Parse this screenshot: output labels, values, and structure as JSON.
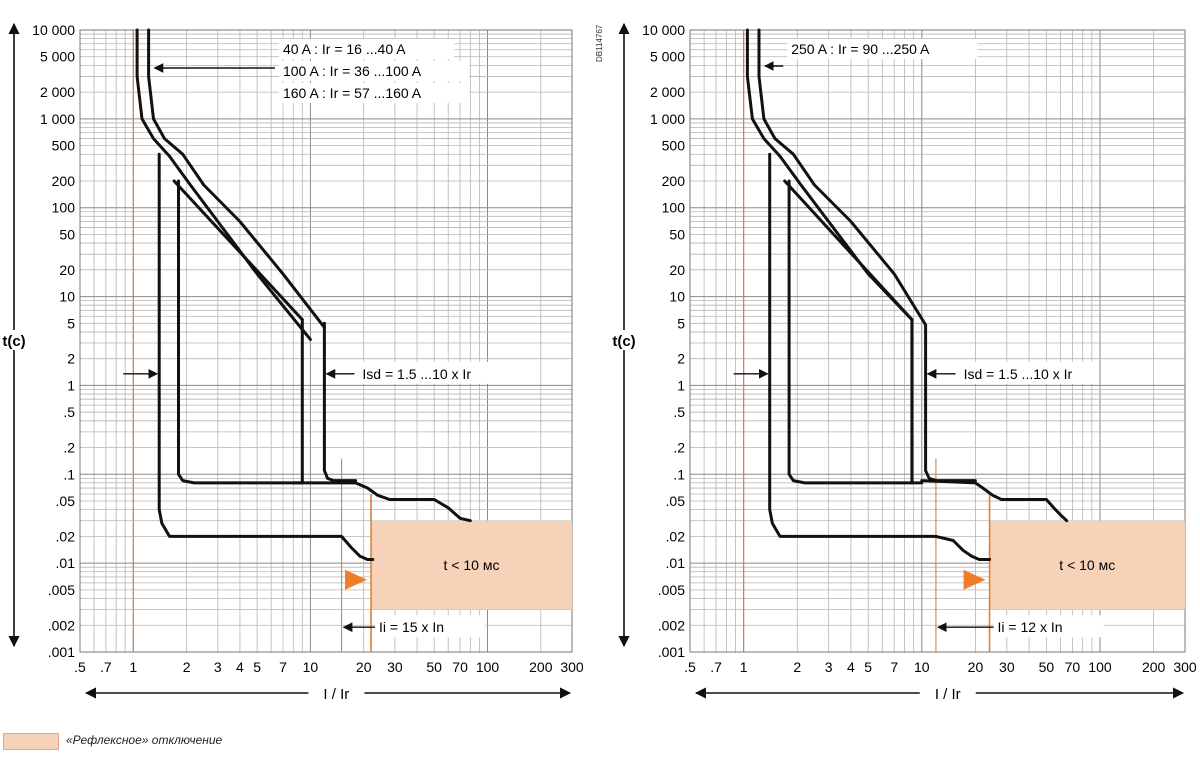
{
  "legend": {
    "reflex_label": "«Рефлексное» отключение",
    "reflex_color": "#f6d2b9"
  },
  "doc_code": "DB114767",
  "chart_data": [
    {
      "type": "line",
      "x_scale": "log",
      "y_scale": "log",
      "xlabel": "I / Ir",
      "ylabel": "t(c)",
      "xlim": [
        0.5,
        300
      ],
      "ylim": [
        0.001,
        10000
      ],
      "x_ticks": [
        0.5,
        0.7,
        1,
        2,
        3,
        4,
        5,
        7,
        10,
        20,
        30,
        50,
        70,
        100,
        200,
        300
      ],
      "x_tick_labels": [
        ".5",
        ".7",
        "1",
        "2",
        "3",
        "4",
        "5",
        "7",
        "10",
        "20",
        "30",
        "50",
        "70",
        "100",
        "200",
        "300"
      ],
      "y_ticks": [
        10000,
        5000,
        2000,
        1000,
        500,
        200,
        100,
        50,
        20,
        10,
        5,
        2,
        1,
        0.5,
        0.2,
        0.1,
        0.05,
        0.02,
        0.01,
        0.005,
        0.002,
        0.001
      ],
      "y_tick_labels": [
        "10 000",
        "5 000",
        "2 000",
        "1 000",
        "500",
        "200",
        "100",
        "50",
        "20",
        "10",
        "5",
        "2",
        "1",
        ".5",
        ".2",
        ".1",
        ".05",
        ".02",
        ".01",
        ".005",
        ".002",
        ".001"
      ],
      "grid": true,
      "orange_lines": [
        1,
        15,
        22
      ],
      "reflex_zone": {
        "x": [
          22,
          300
        ],
        "y": [
          0.003,
          0.03
        ],
        "label": "t < 10 мс"
      },
      "ratings": [
        "40 A : Ir = 16 ...40 A",
        "100 A : Ir = 36 ...100 A",
        "160 A : Ir = 57 ...160 A"
      ],
      "isd_label": "Isd = 1.5 ...10 x Ir",
      "ii_label": "Ii = 15 x In",
      "curves": [
        {
          "x": [
            1.05,
            1.05,
            1.12,
            1.3,
            1.6,
            2.1,
            3,
            5,
            10
          ],
          "y": [
            10000,
            3000,
            1000,
            600,
            380,
            180,
            70,
            18,
            3.3
          ]
        },
        {
          "x": [
            1.22,
            1.22,
            1.3,
            1.5,
            1.9,
            2.5,
            4,
            7,
            12
          ],
          "y": [
            10000,
            3000,
            1000,
            600,
            400,
            180,
            70,
            18,
            4.5
          ]
        },
        {
          "x": [
            1.4,
            1.4,
            1.45,
            1.6,
            2.5,
            8,
            10
          ],
          "y": [
            400,
            0.04,
            0.028,
            0.02,
            0.02,
            0.02,
            0.02
          ]
        },
        {
          "x": [
            1.8,
            1.8,
            1.9,
            2.2,
            8,
            9
          ],
          "y": [
            200,
            0.1,
            0.085,
            0.08,
            0.08,
            0.08
          ]
        },
        {
          "x": [
            1.7,
            9
          ],
          "y": [
            200,
            5.5
          ]
        },
        {
          "x": [
            9,
            9
          ],
          "y": [
            5.5,
            0.08
          ]
        },
        {
          "x": [
            12,
            12,
            12.5,
            13.5,
            18
          ],
          "y": [
            5,
            0.11,
            0.09,
            0.085,
            0.085
          ]
        },
        {
          "x": [
            10,
            15,
            17,
            19,
            21,
            22.5
          ],
          "y": [
            0.02,
            0.02,
            0.015,
            0.012,
            0.011,
            0.011
          ]
        },
        {
          "x": [
            8,
            18,
            21,
            24,
            28,
            40,
            50,
            60,
            70,
            80
          ],
          "y": [
            0.08,
            0.08,
            0.07,
            0.058,
            0.052,
            0.052,
            0.052,
            0.042,
            0.032,
            0.03
          ]
        }
      ]
    },
    {
      "type": "line",
      "x_scale": "log",
      "y_scale": "log",
      "xlabel": "I / Ir",
      "ylabel": "t(c)",
      "xlim": [
        0.5,
        300
      ],
      "ylim": [
        0.001,
        10000
      ],
      "x_ticks": [
        0.5,
        0.7,
        1,
        2,
        3,
        4,
        5,
        7,
        10,
        20,
        30,
        50,
        70,
        100,
        200,
        300
      ],
      "x_tick_labels": [
        ".5",
        ".7",
        "1",
        "2",
        "3",
        "4",
        "5",
        "7",
        "10",
        "20",
        "30",
        "50",
        "70",
        "100",
        "200",
        "300"
      ],
      "y_ticks": [
        10000,
        5000,
        2000,
        1000,
        500,
        200,
        100,
        50,
        20,
        10,
        5,
        2,
        1,
        0.5,
        0.2,
        0.1,
        0.05,
        0.02,
        0.01,
        0.005,
        0.002,
        0.001
      ],
      "y_tick_labels": [
        "10 000",
        "5 000",
        "2 000",
        "1 000",
        "500",
        "200",
        "100",
        "50",
        "20",
        "10",
        "5",
        "2",
        "1",
        ".5",
        ".2",
        ".1",
        ".05",
        ".02",
        ".01",
        ".005",
        ".002",
        ".001"
      ],
      "grid": true,
      "orange_lines": [
        1,
        12,
        24
      ],
      "reflex_zone": {
        "x": [
          24,
          300
        ],
        "y": [
          0.003,
          0.03
        ],
        "label": "t < 10 мс"
      },
      "ratings": [
        "250 A : Ir = 90 ...250 A"
      ],
      "isd_label": "Isd = 1.5 ...10 x Ir",
      "ii_label": "Ii = 12 x In",
      "curves": [
        {
          "x": [
            1.05,
            1.05,
            1.12,
            1.3,
            1.6,
            2.1,
            3,
            5,
            8.8
          ],
          "y": [
            10000,
            3000,
            1000,
            600,
            380,
            180,
            70,
            18,
            5.5
          ]
        },
        {
          "x": [
            1.22,
            1.22,
            1.3,
            1.5,
            1.9,
            2.5,
            4,
            7,
            10.5
          ],
          "y": [
            10000,
            3000,
            1000,
            600,
            400,
            180,
            70,
            18,
            4.8
          ]
        },
        {
          "x": [
            1.4,
            1.4,
            1.45,
            1.6,
            2.5,
            8,
            12
          ],
          "y": [
            400,
            0.04,
            0.028,
            0.02,
            0.02,
            0.02,
            0.02
          ]
        },
        {
          "x": [
            1.8,
            1.8,
            1.9,
            2.2,
            8,
            10
          ],
          "y": [
            200,
            0.1,
            0.085,
            0.08,
            0.08,
            0.08
          ]
        },
        {
          "x": [
            1.7,
            8.8
          ],
          "y": [
            200,
            5.5
          ]
        },
        {
          "x": [
            8.8,
            8.8
          ],
          "y": [
            5.5,
            0.08
          ]
        },
        {
          "x": [
            10.5,
            10.5,
            11,
            12,
            20
          ],
          "y": [
            4.8,
            0.11,
            0.09,
            0.085,
            0.085
          ]
        },
        {
          "x": [
            12,
            15,
            17,
            19,
            21,
            24
          ],
          "y": [
            0.02,
            0.018,
            0.014,
            0.012,
            0.011,
            0.011
          ]
        },
        {
          "x": [
            10,
            20,
            22,
            25,
            28,
            40,
            50,
            55,
            60,
            65
          ],
          "y": [
            0.085,
            0.08,
            0.07,
            0.058,
            0.052,
            0.052,
            0.052,
            0.042,
            0.035,
            0.03
          ]
        }
      ]
    }
  ]
}
